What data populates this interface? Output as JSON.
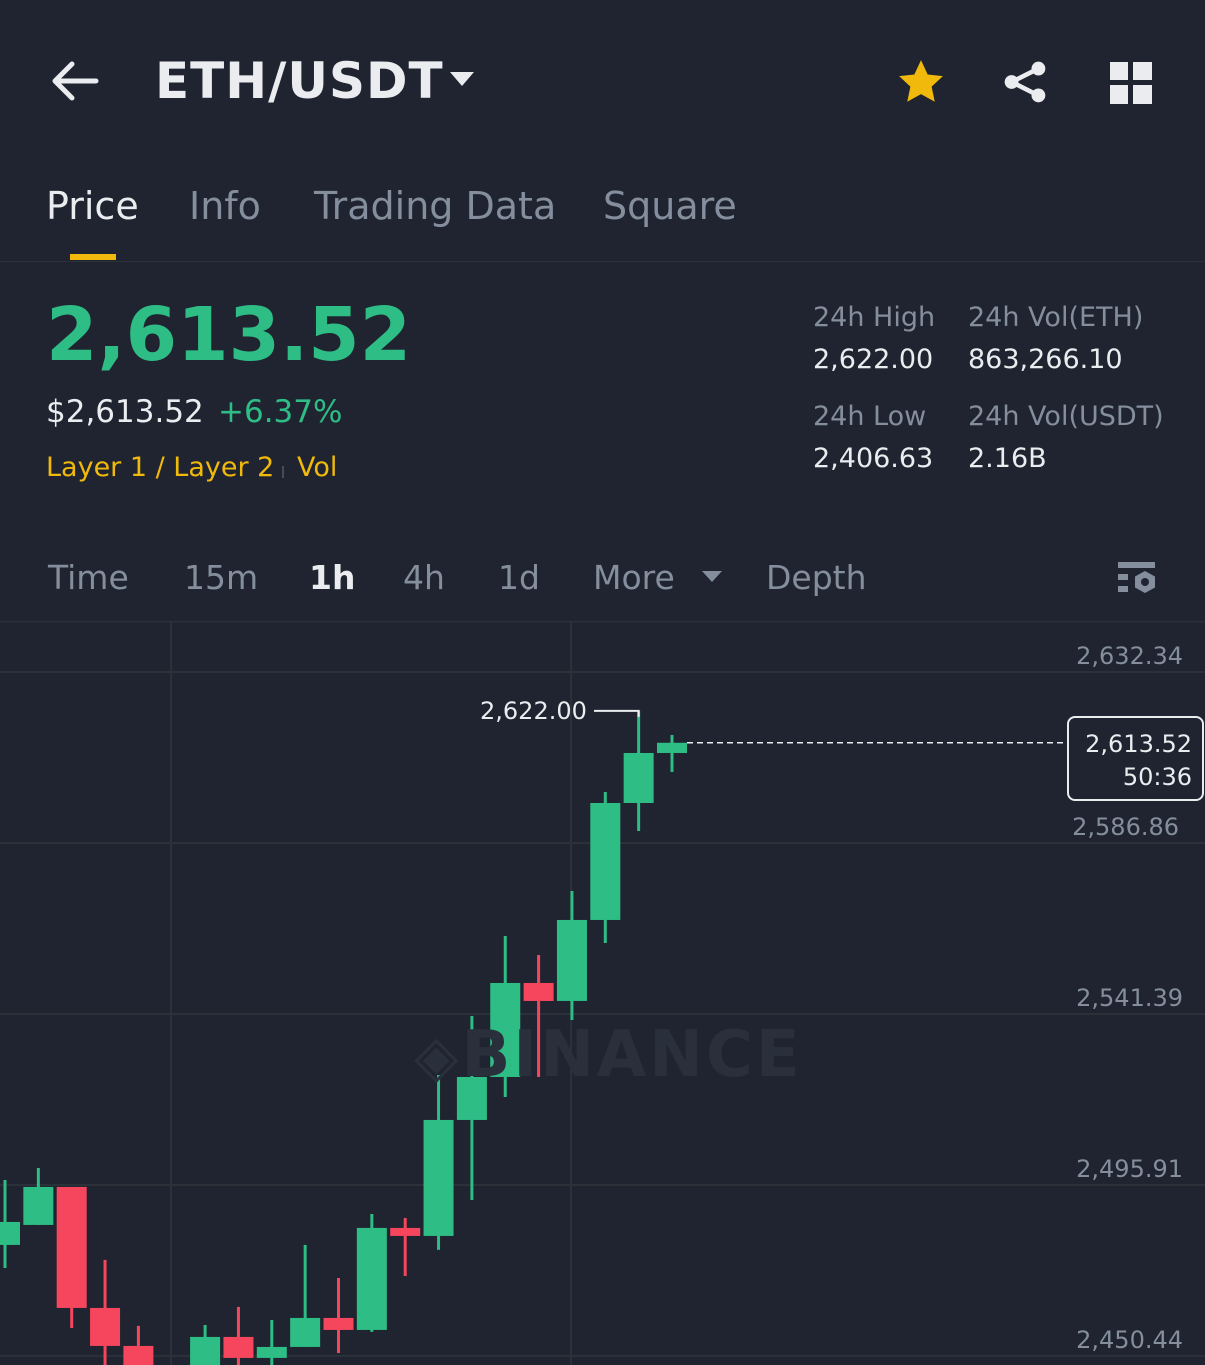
{
  "header": {
    "title": "ETH/USDT",
    "icons": [
      "back-arrow-icon",
      "chevron-down-icon",
      "star-icon",
      "share-icon",
      "grid-icon"
    ],
    "star_color": "#f0b90b"
  },
  "tabs": [
    {
      "label": "Price",
      "active": true
    },
    {
      "label": "Info"
    },
    {
      "label": "Trading Data"
    },
    {
      "label": "Square"
    }
  ],
  "ticker": {
    "last_price": "2,613.52",
    "usd_price": "$2,613.52",
    "change": "+6.37%",
    "tags": [
      "Layer 1 / Layer 2",
      "Vol"
    ],
    "high_label": "24h High",
    "high": "2,622.00",
    "vol_eth_label": "24h Vol(ETH)",
    "vol_eth": "863,266.10",
    "low_label": "24h Low",
    "low": "2,406.63",
    "vol_usdt_label": "24h Vol(USDT)",
    "vol_usdt": "2.16B"
  },
  "intervals": [
    {
      "label": "Time"
    },
    {
      "label": "15m"
    },
    {
      "label": "1h",
      "active": true
    },
    {
      "label": "4h"
    },
    {
      "label": "1d"
    },
    {
      "label": "More"
    },
    {
      "label": "Depth"
    }
  ],
  "colors": {
    "up": "#2ebd85",
    "down": "#f6465d",
    "accent": "#f0b90b"
  },
  "chart_data": {
    "type": "candlestick",
    "y_ticks": [
      "2,632.34",
      "2,586.86",
      "2,541.39",
      "2,495.91",
      "2,450.44"
    ],
    "y_tick_values": [
      2632.34,
      2586.86,
      2541.39,
      2495.91,
      2450.44
    ],
    "high_marker": "2,622.00",
    "current_price": "2,613.52",
    "countdown": "50:36",
    "watermark": "BINANCE",
    "candles": [
      {
        "o": 2479.96,
        "h": 2497.24,
        "l": 2473.84,
        "c": 2486.07
      },
      {
        "o": 2485.28,
        "h": 2500.43,
        "l": 2485.28,
        "c": 2495.38
      },
      {
        "o": 2495.38,
        "h": 2495.38,
        "l": 2457.88,
        "c": 2463.2
      },
      {
        "o": 2463.2,
        "h": 2475.97,
        "l": 2448.04,
        "c": 2453.1
      },
      {
        "o": 2453.1,
        "h": 2458.42,
        "l": 2440.0,
        "c": 2445.38
      },
      null,
      {
        "o": 2445.38,
        "h": 2458.68,
        "l": 2440.0,
        "c": 2455.49
      },
      {
        "o": 2455.49,
        "h": 2463.47,
        "l": 2445.0,
        "c": 2449.91
      },
      {
        "o": 2449.91,
        "h": 2460.01,
        "l": 2446.0,
        "c": 2452.83
      },
      {
        "o": 2452.83,
        "h": 2479.96,
        "l": 2452.83,
        "c": 2460.54
      },
      {
        "o": 2460.54,
        "h": 2471.18,
        "l": 2451.23,
        "c": 2457.35
      },
      {
        "o": 2457.35,
        "h": 2488.2,
        "l": 2456.82,
        "c": 2484.48
      },
      {
        "o": 2484.48,
        "h": 2487.14,
        "l": 2471.71,
        "c": 2482.35
      },
      {
        "o": 2482.35,
        "h": 2525.17,
        "l": 2478.63,
        "c": 2513.2
      },
      {
        "o": 2513.2,
        "h": 2540.86,
        "l": 2491.92,
        "c": 2524.63
      },
      {
        "o": 2524.63,
        "h": 2562.13,
        "l": 2519.32,
        "c": 2549.63
      },
      {
        "o": 2549.63,
        "h": 2557.08,
        "l": 2524.63,
        "c": 2544.85
      },
      {
        "o": 2544.85,
        "h": 2574.1,
        "l": 2539.79,
        "c": 2566.39
      },
      {
        "o": 2566.39,
        "h": 2600.43,
        "l": 2560.27,
        "c": 2597.5
      },
      {
        "o": 2597.5,
        "h": 2622.0,
        "l": 2590.06,
        "c": 2610.8
      },
      {
        "o": 2610.8,
        "h": 2615.59,
        "l": 2605.75,
        "c": 2613.52
      }
    ]
  }
}
